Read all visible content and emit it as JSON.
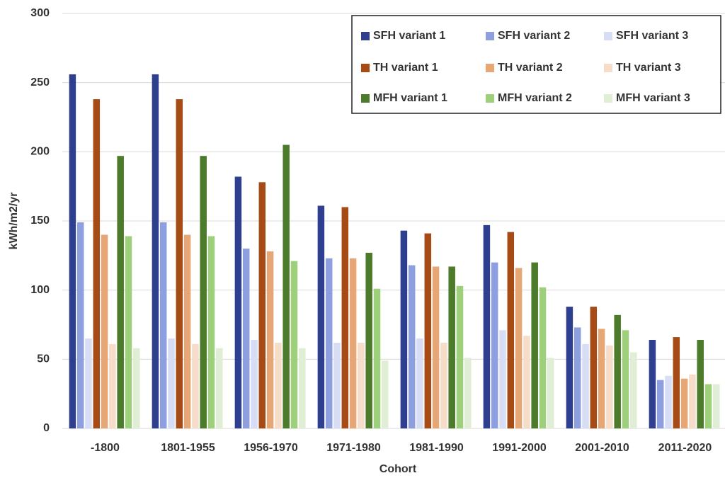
{
  "chart_data": {
    "type": "bar",
    "x_label": "Cohort",
    "y_label": "kWh/m2/yr",
    "categories": [
      "-1800",
      "1801-1955",
      "1956-1970",
      "1971-1980",
      "1981-1990",
      "1991-2000",
      "2001-2010",
      "2011-2020"
    ],
    "series": [
      {
        "name": "SFH variant 1",
        "color": "#2f3f8f",
        "values": [
          256,
          256,
          182,
          161,
          143,
          147,
          88,
          64
        ]
      },
      {
        "name": "SFH variant 2",
        "color": "#8e9fe0",
        "values": [
          149,
          149,
          130,
          123,
          118,
          120,
          73,
          35
        ]
      },
      {
        "name": "SFH variant 3",
        "color": "#d7ddf4",
        "values": [
          65,
          65,
          64,
          62,
          65,
          71,
          61,
          38
        ]
      },
      {
        "name": "TH variant 1",
        "color": "#a64b16",
        "values": [
          238,
          238,
          178,
          160,
          141,
          142,
          88,
          66
        ]
      },
      {
        "name": "TH variant 2",
        "color": "#e6a675",
        "values": [
          140,
          140,
          128,
          123,
          117,
          116,
          72,
          36
        ]
      },
      {
        "name": "TH variant 3",
        "color": "#f6ddc9",
        "values": [
          61,
          61,
          62,
          62,
          62,
          67,
          60,
          39
        ]
      },
      {
        "name": "MFH variant 1",
        "color": "#4b7b2b",
        "values": [
          197,
          197,
          205,
          127,
          117,
          120,
          82,
          64
        ]
      },
      {
        "name": "MFH variant 2",
        "color": "#9ecf7b",
        "values": [
          139,
          139,
          121,
          101,
          103,
          102,
          71,
          32
        ]
      },
      {
        "name": "MFH variant 3",
        "color": "#dfeed5",
        "values": [
          58,
          58,
          58,
          49,
          51,
          51,
          55,
          32
        ]
      }
    ],
    "ylim": [
      0,
      300
    ],
    "yticks": [
      0,
      50,
      100,
      150,
      200,
      250,
      300
    ],
    "grid": true,
    "legend": "upper right"
  }
}
